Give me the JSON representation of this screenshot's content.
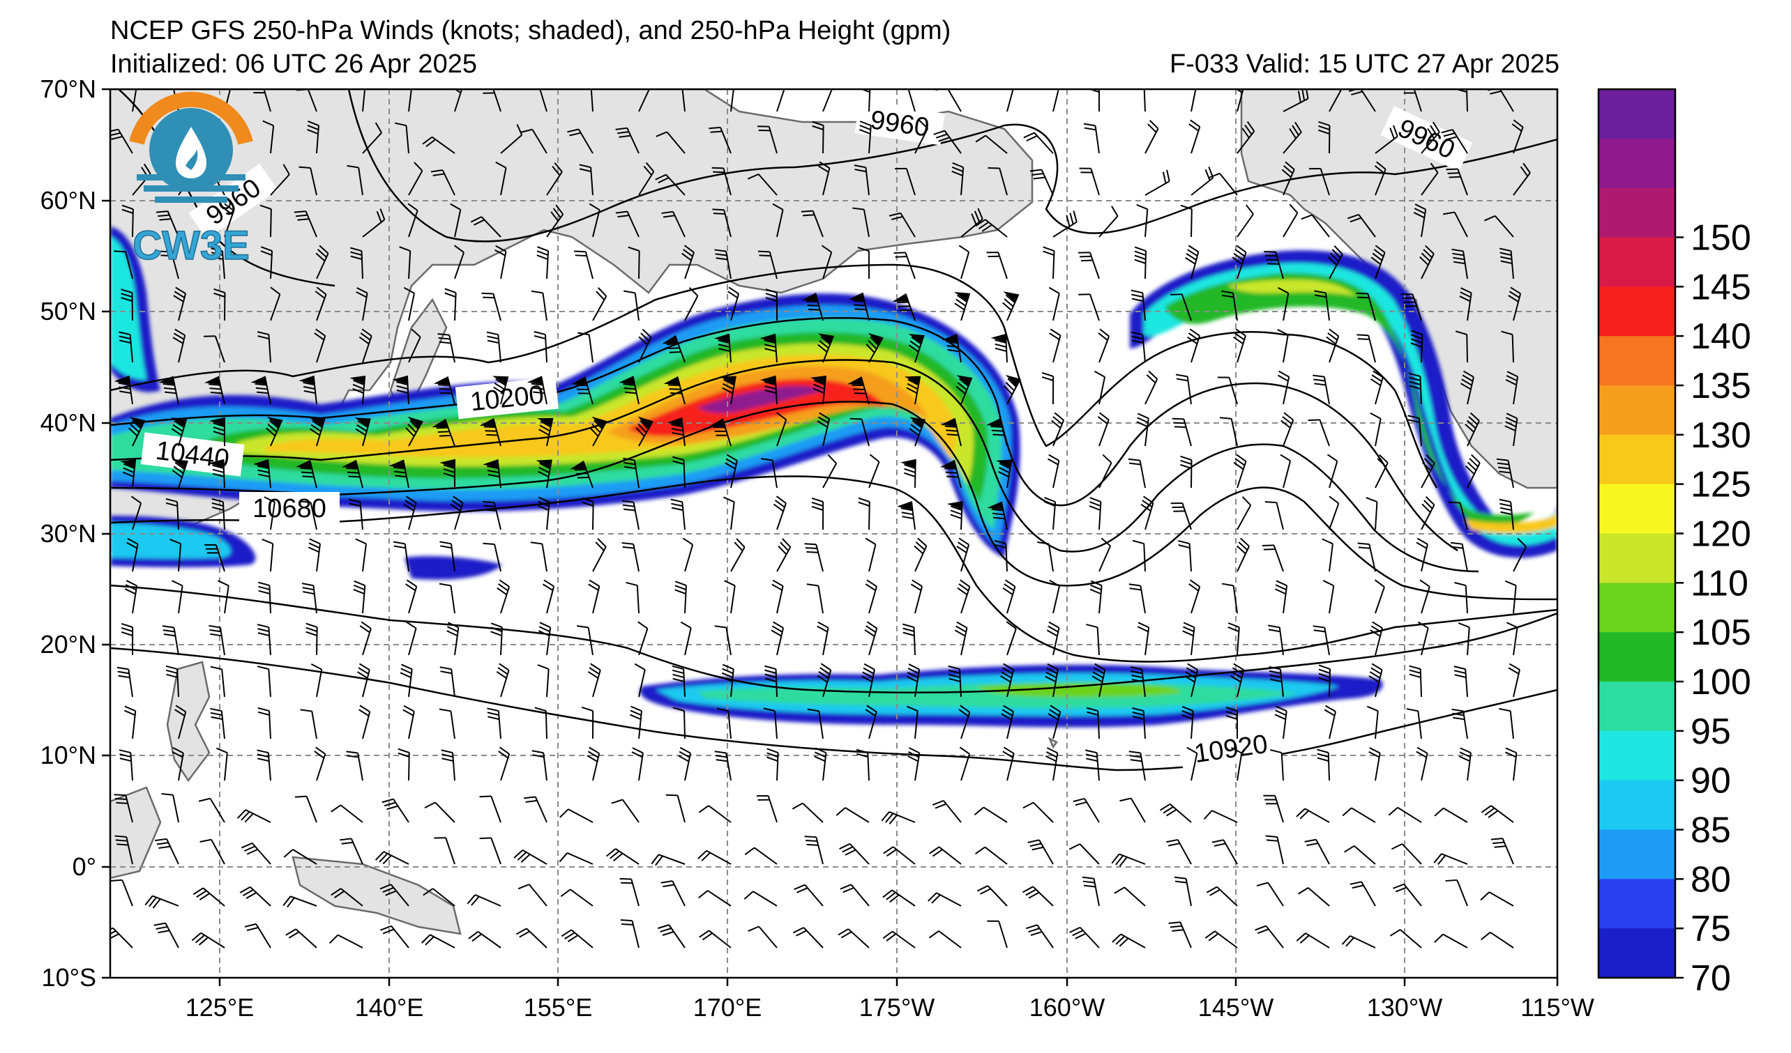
{
  "header": {
    "title": "NCEP GFS 250-hPa Winds (knots; shaded), and 250-hPa Height (gpm)",
    "initialized": "Initialized: 06 UTC 26 Apr 2025",
    "valid": "F-033  Valid: 15 UTC 27 Apr 2025"
  },
  "logo": {
    "text": "CW3E",
    "icon": "water-drop-sun-logo"
  },
  "axes": {
    "lat_labels": [
      "70°N",
      "60°N",
      "50°N",
      "40°N",
      "30°N",
      "20°N",
      "10°N",
      "0°",
      "10°S"
    ],
    "lon_labels": [
      "125°E",
      "140°E",
      "155°E",
      "170°E",
      "175°W",
      "160°W",
      "145°W",
      "130°W",
      "115°W"
    ]
  },
  "colorbar": {
    "labels": [
      "70",
      "75",
      "80",
      "85",
      "90",
      "95",
      "100",
      "105",
      "110",
      "120",
      "125",
      "130",
      "135",
      "140",
      "145",
      "150"
    ],
    "colors": [
      "#1a1fc8",
      "#2a40f0",
      "#1e9cf5",
      "#1cc9f0",
      "#1fe6e0",
      "#2ddca0",
      "#22b826",
      "#6cd31f",
      "#c9e62a",
      "#f7f720",
      "#f8c81a",
      "#f59f1d",
      "#f57520",
      "#f7201c",
      "#d91a48",
      "#b01a6e",
      "#8e1a8e",
      "#6b1f9a"
    ]
  },
  "contours": {
    "labels": [
      "9960",
      "9960",
      "9960",
      "10200",
      "10440",
      "10680",
      "10920"
    ]
  },
  "colors": {
    "land": "#e3e3e3",
    "coast": "#6a6a6a",
    "grid": "#8a8a8a"
  }
}
